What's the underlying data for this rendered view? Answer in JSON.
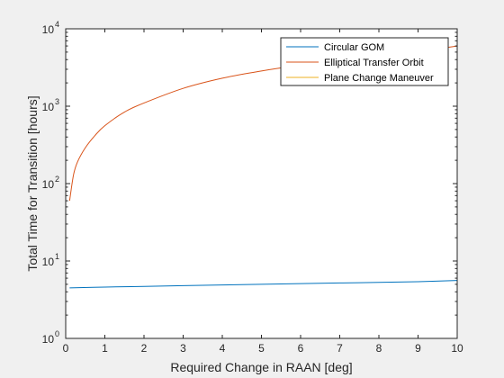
{
  "chart_data": {
    "type": "line",
    "title": "",
    "xlabel": "Required Change in RAAN [deg]",
    "ylabel": "Total Time for Transition [hours]",
    "xlim": [
      0,
      10
    ],
    "ylim": [
      1,
      10000
    ],
    "yscale": "log",
    "xticks": [
      0,
      1,
      2,
      3,
      4,
      5,
      6,
      7,
      8,
      9,
      10
    ],
    "yticks": [
      {
        "value": 1,
        "base": "10",
        "exp": "0"
      },
      {
        "value": 10,
        "base": "10",
        "exp": "1"
      },
      {
        "value": 100,
        "base": "10",
        "exp": "2"
      },
      {
        "value": 1000,
        "base": "10",
        "exp": "3"
      },
      {
        "value": 10000,
        "base": "10",
        "exp": "4"
      }
    ],
    "grid": false,
    "legend_position": "top-right",
    "series": [
      {
        "name": "Circular GOM",
        "color": "#0072bd",
        "x": [
          0.1,
          1,
          2,
          3,
          4,
          5,
          6,
          7,
          8,
          9,
          10
        ],
        "y": [
          4.5,
          4.6,
          4.7,
          4.8,
          4.9,
          5.0,
          5.1,
          5.2,
          5.3,
          5.4,
          5.6
        ]
      },
      {
        "name": "Elliptical Transfer Orbit",
        "color": "#d95319",
        "x": [
          0.1,
          0.2,
          0.3,
          0.5,
          0.75,
          1,
          1.5,
          2,
          3,
          4,
          5,
          6,
          7,
          8,
          9,
          9.5,
          10
        ],
        "y": [
          60,
          130,
          190,
          290,
          420,
          560,
          840,
          1100,
          1700,
          2300,
          2850,
          3400,
          3950,
          4500,
          5000,
          5500,
          6000
        ]
      },
      {
        "name": "Plane Change Maneuver",
        "color": "#edb120",
        "x": [],
        "y": []
      }
    ]
  }
}
